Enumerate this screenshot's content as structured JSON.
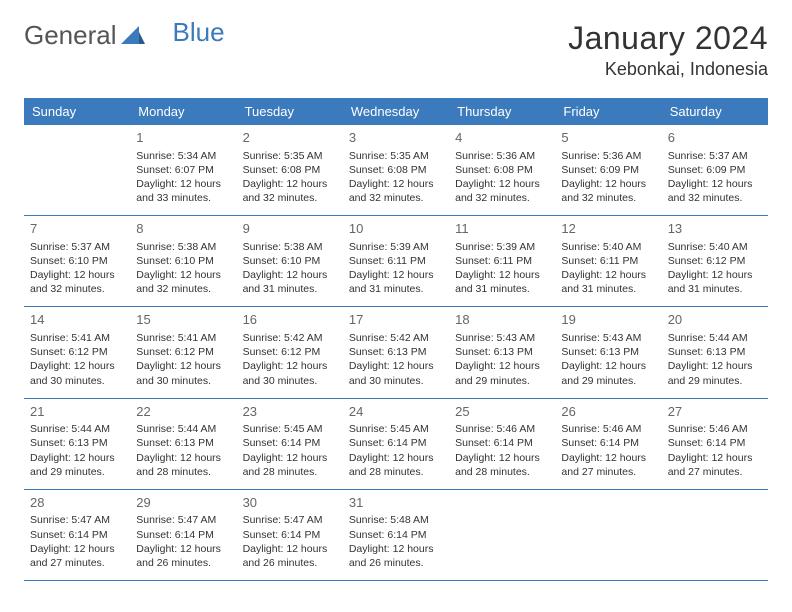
{
  "brand": {
    "general": "General",
    "blue": "Blue"
  },
  "title": "January 2024",
  "location": "Kebonkai, Indonesia",
  "colors": {
    "header_bg": "#3a7abd",
    "header_text": "#ffffff",
    "border": "#3a7abd",
    "text": "#333333",
    "daynum": "#666666",
    "page_bg": "#ffffff"
  },
  "weekdays": [
    "Sunday",
    "Monday",
    "Tuesday",
    "Wednesday",
    "Thursday",
    "Friday",
    "Saturday"
  ],
  "weeks": [
    [
      null,
      {
        "day": "1",
        "sunrise": "Sunrise: 5:34 AM",
        "sunset": "Sunset: 6:07 PM",
        "dl1": "Daylight: 12 hours",
        "dl2": "and 33 minutes."
      },
      {
        "day": "2",
        "sunrise": "Sunrise: 5:35 AM",
        "sunset": "Sunset: 6:08 PM",
        "dl1": "Daylight: 12 hours",
        "dl2": "and 32 minutes."
      },
      {
        "day": "3",
        "sunrise": "Sunrise: 5:35 AM",
        "sunset": "Sunset: 6:08 PM",
        "dl1": "Daylight: 12 hours",
        "dl2": "and 32 minutes."
      },
      {
        "day": "4",
        "sunrise": "Sunrise: 5:36 AM",
        "sunset": "Sunset: 6:08 PM",
        "dl1": "Daylight: 12 hours",
        "dl2": "and 32 minutes."
      },
      {
        "day": "5",
        "sunrise": "Sunrise: 5:36 AM",
        "sunset": "Sunset: 6:09 PM",
        "dl1": "Daylight: 12 hours",
        "dl2": "and 32 minutes."
      },
      {
        "day": "6",
        "sunrise": "Sunrise: 5:37 AM",
        "sunset": "Sunset: 6:09 PM",
        "dl1": "Daylight: 12 hours",
        "dl2": "and 32 minutes."
      }
    ],
    [
      {
        "day": "7",
        "sunrise": "Sunrise: 5:37 AM",
        "sunset": "Sunset: 6:10 PM",
        "dl1": "Daylight: 12 hours",
        "dl2": "and 32 minutes."
      },
      {
        "day": "8",
        "sunrise": "Sunrise: 5:38 AM",
        "sunset": "Sunset: 6:10 PM",
        "dl1": "Daylight: 12 hours",
        "dl2": "and 32 minutes."
      },
      {
        "day": "9",
        "sunrise": "Sunrise: 5:38 AM",
        "sunset": "Sunset: 6:10 PM",
        "dl1": "Daylight: 12 hours",
        "dl2": "and 31 minutes."
      },
      {
        "day": "10",
        "sunrise": "Sunrise: 5:39 AM",
        "sunset": "Sunset: 6:11 PM",
        "dl1": "Daylight: 12 hours",
        "dl2": "and 31 minutes."
      },
      {
        "day": "11",
        "sunrise": "Sunrise: 5:39 AM",
        "sunset": "Sunset: 6:11 PM",
        "dl1": "Daylight: 12 hours",
        "dl2": "and 31 minutes."
      },
      {
        "day": "12",
        "sunrise": "Sunrise: 5:40 AM",
        "sunset": "Sunset: 6:11 PM",
        "dl1": "Daylight: 12 hours",
        "dl2": "and 31 minutes."
      },
      {
        "day": "13",
        "sunrise": "Sunrise: 5:40 AM",
        "sunset": "Sunset: 6:12 PM",
        "dl1": "Daylight: 12 hours",
        "dl2": "and 31 minutes."
      }
    ],
    [
      {
        "day": "14",
        "sunrise": "Sunrise: 5:41 AM",
        "sunset": "Sunset: 6:12 PM",
        "dl1": "Daylight: 12 hours",
        "dl2": "and 30 minutes."
      },
      {
        "day": "15",
        "sunrise": "Sunrise: 5:41 AM",
        "sunset": "Sunset: 6:12 PM",
        "dl1": "Daylight: 12 hours",
        "dl2": "and 30 minutes."
      },
      {
        "day": "16",
        "sunrise": "Sunrise: 5:42 AM",
        "sunset": "Sunset: 6:12 PM",
        "dl1": "Daylight: 12 hours",
        "dl2": "and 30 minutes."
      },
      {
        "day": "17",
        "sunrise": "Sunrise: 5:42 AM",
        "sunset": "Sunset: 6:13 PM",
        "dl1": "Daylight: 12 hours",
        "dl2": "and 30 minutes."
      },
      {
        "day": "18",
        "sunrise": "Sunrise: 5:43 AM",
        "sunset": "Sunset: 6:13 PM",
        "dl1": "Daylight: 12 hours",
        "dl2": "and 29 minutes."
      },
      {
        "day": "19",
        "sunrise": "Sunrise: 5:43 AM",
        "sunset": "Sunset: 6:13 PM",
        "dl1": "Daylight: 12 hours",
        "dl2": "and 29 minutes."
      },
      {
        "day": "20",
        "sunrise": "Sunrise: 5:44 AM",
        "sunset": "Sunset: 6:13 PM",
        "dl1": "Daylight: 12 hours",
        "dl2": "and 29 minutes."
      }
    ],
    [
      {
        "day": "21",
        "sunrise": "Sunrise: 5:44 AM",
        "sunset": "Sunset: 6:13 PM",
        "dl1": "Daylight: 12 hours",
        "dl2": "and 29 minutes."
      },
      {
        "day": "22",
        "sunrise": "Sunrise: 5:44 AM",
        "sunset": "Sunset: 6:13 PM",
        "dl1": "Daylight: 12 hours",
        "dl2": "and 28 minutes."
      },
      {
        "day": "23",
        "sunrise": "Sunrise: 5:45 AM",
        "sunset": "Sunset: 6:14 PM",
        "dl1": "Daylight: 12 hours",
        "dl2": "and 28 minutes."
      },
      {
        "day": "24",
        "sunrise": "Sunrise: 5:45 AM",
        "sunset": "Sunset: 6:14 PM",
        "dl1": "Daylight: 12 hours",
        "dl2": "and 28 minutes."
      },
      {
        "day": "25",
        "sunrise": "Sunrise: 5:46 AM",
        "sunset": "Sunset: 6:14 PM",
        "dl1": "Daylight: 12 hours",
        "dl2": "and 28 minutes."
      },
      {
        "day": "26",
        "sunrise": "Sunrise: 5:46 AM",
        "sunset": "Sunset: 6:14 PM",
        "dl1": "Daylight: 12 hours",
        "dl2": "and 27 minutes."
      },
      {
        "day": "27",
        "sunrise": "Sunrise: 5:46 AM",
        "sunset": "Sunset: 6:14 PM",
        "dl1": "Daylight: 12 hours",
        "dl2": "and 27 minutes."
      }
    ],
    [
      {
        "day": "28",
        "sunrise": "Sunrise: 5:47 AM",
        "sunset": "Sunset: 6:14 PM",
        "dl1": "Daylight: 12 hours",
        "dl2": "and 27 minutes."
      },
      {
        "day": "29",
        "sunrise": "Sunrise: 5:47 AM",
        "sunset": "Sunset: 6:14 PM",
        "dl1": "Daylight: 12 hours",
        "dl2": "and 26 minutes."
      },
      {
        "day": "30",
        "sunrise": "Sunrise: 5:47 AM",
        "sunset": "Sunset: 6:14 PM",
        "dl1": "Daylight: 12 hours",
        "dl2": "and 26 minutes."
      },
      {
        "day": "31",
        "sunrise": "Sunrise: 5:48 AM",
        "sunset": "Sunset: 6:14 PM",
        "dl1": "Daylight: 12 hours",
        "dl2": "and 26 minutes."
      },
      null,
      null,
      null
    ]
  ]
}
